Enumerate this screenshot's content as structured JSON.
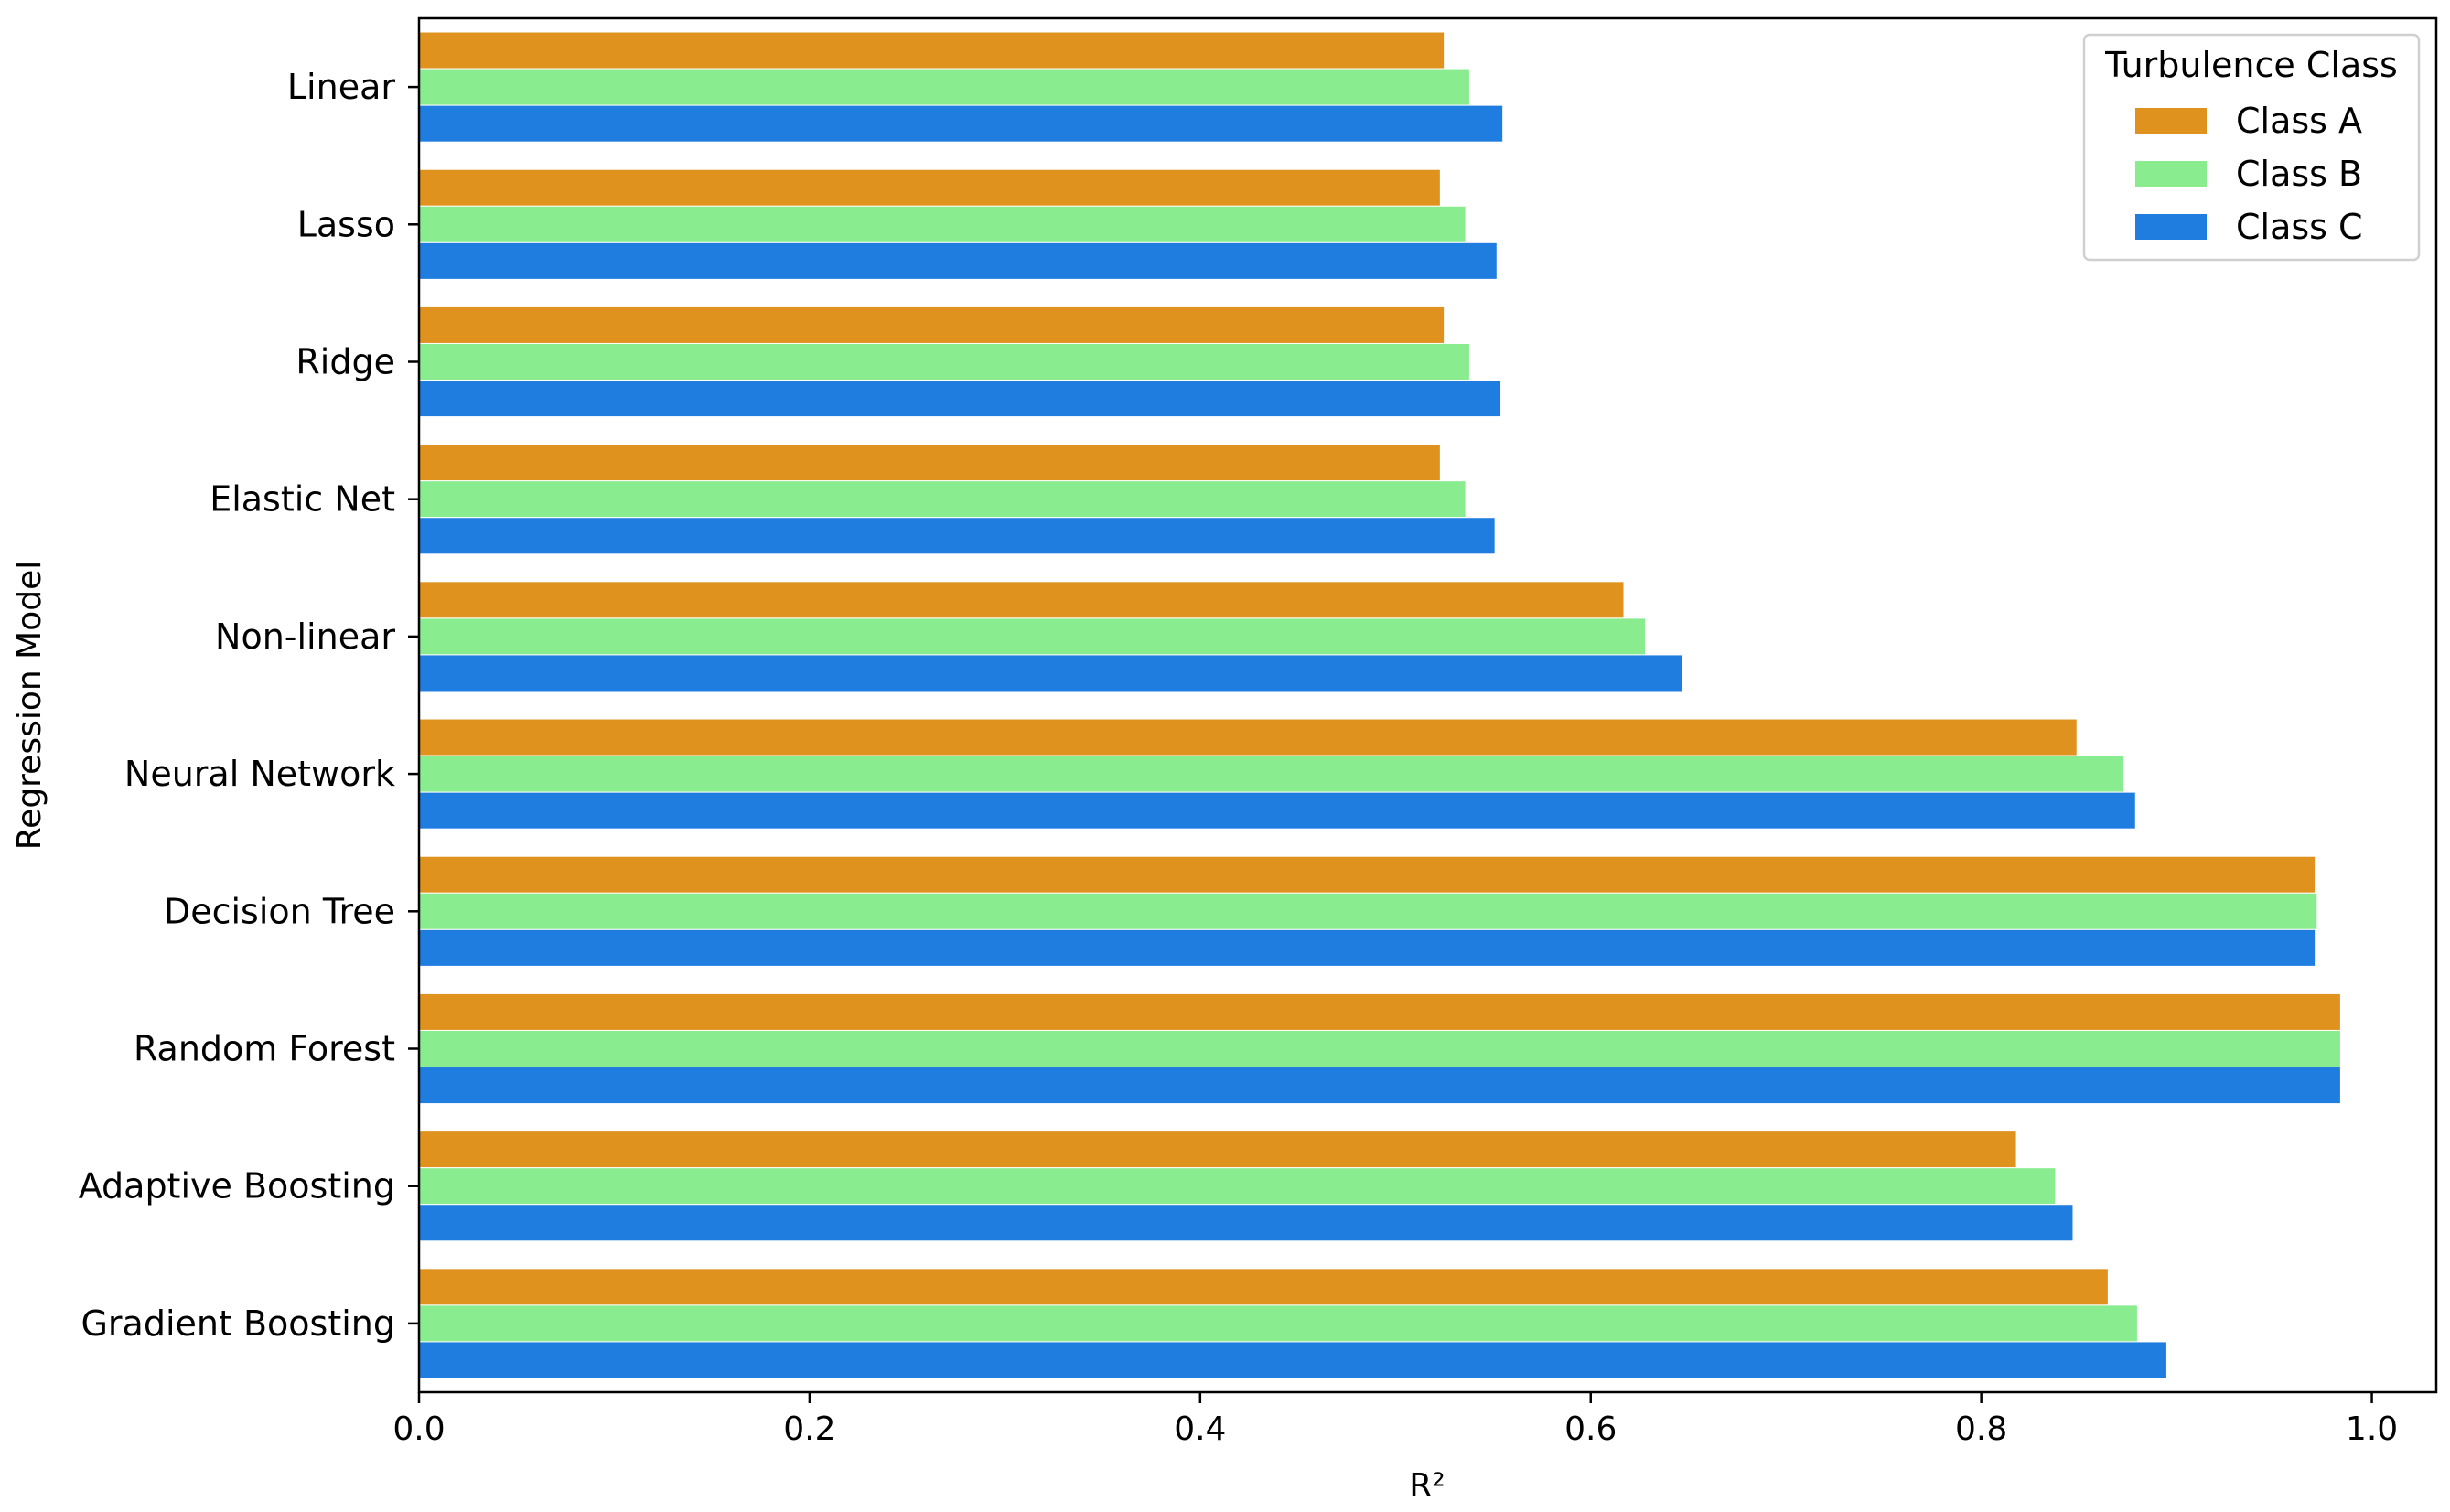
{
  "chart_data": {
    "type": "bar",
    "orientation": "horizontal",
    "title": "",
    "xlabel": "R²",
    "ylabel": "Regression Model",
    "xlim": [
      0.0,
      1.033
    ],
    "xticks": [
      0.0,
      0.2,
      0.4,
      0.6,
      0.8,
      1.0
    ],
    "xtick_labels": [
      "0.0",
      "0.2",
      "0.4",
      "0.6",
      "0.8",
      "1.0"
    ],
    "categories": [
      "Linear",
      "Lasso",
      "Ridge",
      "Elastic Net",
      "Non-linear",
      "Neural Network",
      "Decision Tree",
      "Random Forest",
      "Adaptive Boosting",
      "Gradient Boosting"
    ],
    "series": [
      {
        "name": "Class A",
        "color": "#e0921f",
        "values": [
          0.525,
          0.523,
          0.525,
          0.523,
          0.617,
          0.849,
          0.971,
          0.984,
          0.818,
          0.865
        ]
      },
      {
        "name": "Class B",
        "color": "#89ec8e",
        "values": [
          0.538,
          0.536,
          0.538,
          0.536,
          0.628,
          0.873,
          0.972,
          0.984,
          0.838,
          0.88
        ]
      },
      {
        "name": "Class C",
        "color": "#1f7de0",
        "values": [
          0.555,
          0.552,
          0.554,
          0.551,
          0.647,
          0.879,
          0.971,
          0.984,
          0.847,
          0.895
        ]
      }
    ],
    "legend": {
      "title": "Turbulence Class",
      "placement": "top-right"
    },
    "grid": false
  }
}
